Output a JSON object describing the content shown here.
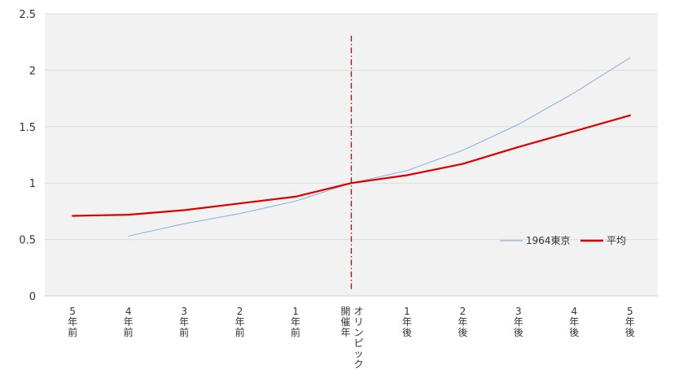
{
  "chart_data": {
    "type": "line",
    "categories": [
      [
        "5",
        "年",
        "前"
      ],
      [
        "4",
        "年",
        "前"
      ],
      [
        "3",
        "年",
        "前"
      ],
      [
        "2",
        "年",
        "前"
      ],
      [
        "1",
        "年",
        "前"
      ],
      [
        "開",
        "催",
        "年",
        "オ",
        "リ",
        "ン",
        "ピ",
        "ッ",
        "ク"
      ],
      [
        "1",
        "年",
        "後"
      ],
      [
        "2",
        "年",
        "後"
      ],
      [
        "3",
        "年",
        "後"
      ],
      [
        "4",
        "年",
        "後"
      ],
      [
        "5",
        "年",
        "後"
      ]
    ],
    "series": [
      {
        "name": "1964東京",
        "color": "#8fb3d9",
        "values": [
          null,
          0.53,
          0.64,
          0.73,
          0.84,
          1.0,
          1.11,
          1.29,
          1.52,
          1.8,
          2.11
        ]
      },
      {
        "name": "平均",
        "color": "#dd0000",
        "values": [
          0.71,
          0.72,
          0.76,
          0.82,
          0.88,
          1.0,
          1.07,
          1.17,
          1.32,
          1.46,
          1.6
        ]
      }
    ],
    "ylim": [
      0,
      2.5
    ],
    "yticks": [
      "0",
      "0.5",
      "1",
      "1.5",
      "2",
      "2.5"
    ],
    "reference_line": {
      "category_index": 5,
      "color": "#cc0000",
      "style": "dash-dot"
    },
    "grid": true,
    "legend": "right-middle",
    "plot_background": "#f2f2f2"
  }
}
